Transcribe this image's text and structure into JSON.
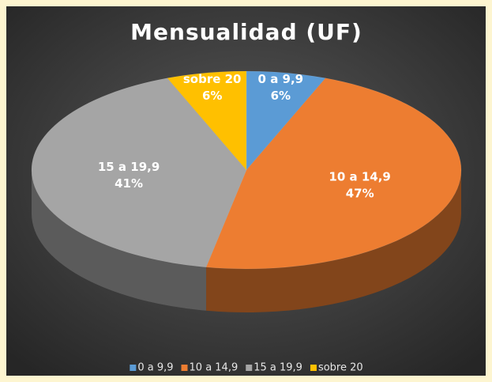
{
  "chart_data": {
    "type": "pie",
    "title": "Mensualidad (UF)",
    "categories": [
      "0 a 9,9",
      "10 a 14,9",
      "15 a 19,9",
      "sobre 20"
    ],
    "values": [
      6,
      47,
      41,
      6
    ],
    "value_labels": [
      "6%",
      "47%",
      "41%",
      "6%"
    ],
    "colors": [
      "#5b9bd5",
      "#ed7d31",
      "#a5a5a5",
      "#ffc000"
    ],
    "legend": "bottom"
  }
}
